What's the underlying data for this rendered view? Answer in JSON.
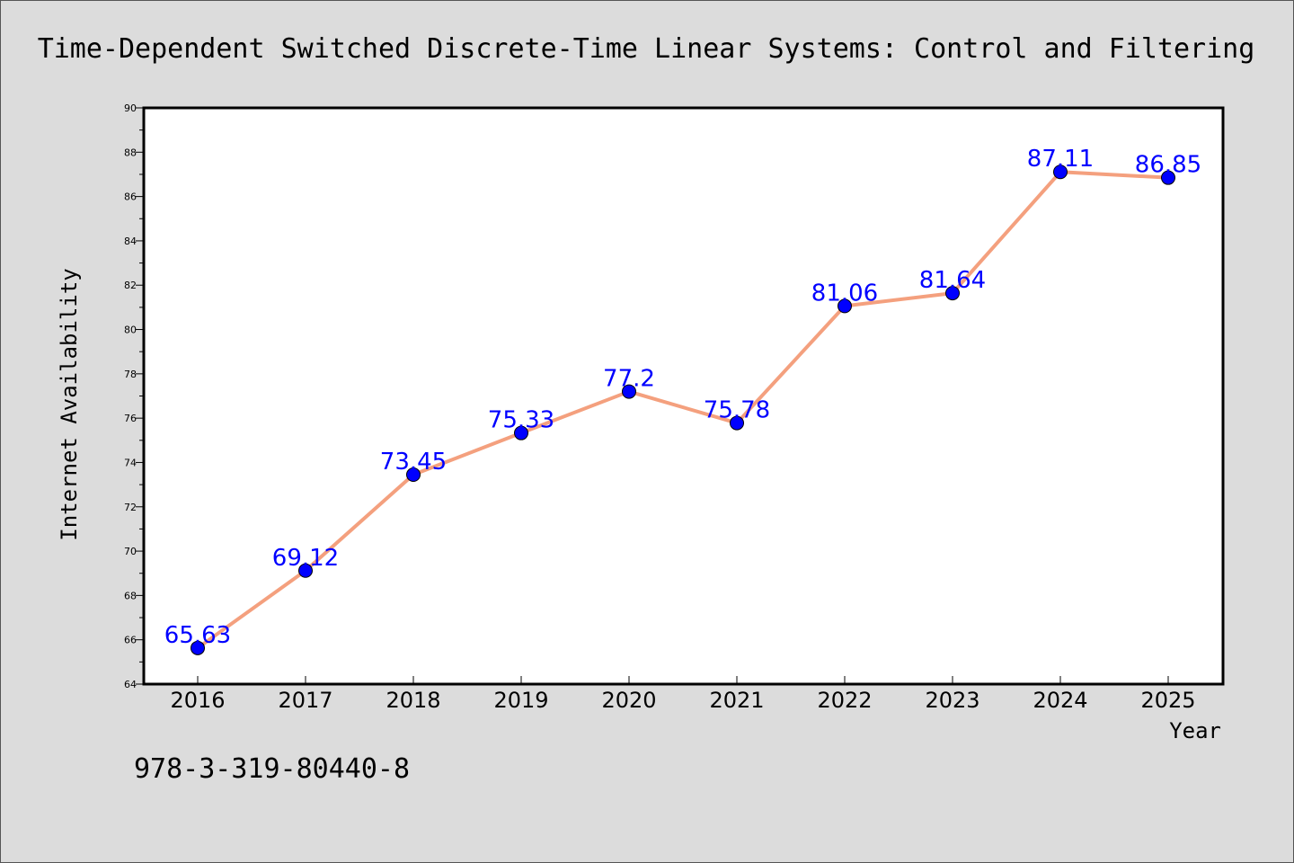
{
  "chart_data": {
    "type": "line",
    "title": "Time-Dependent Switched Discrete-Time Linear Systems: Control and Filtering",
    "xlabel": "Year",
    "ylabel": "Internet Availability",
    "categories": [
      "2016",
      "2017",
      "2018",
      "2019",
      "2020",
      "2021",
      "2022",
      "2023",
      "2024",
      "2025"
    ],
    "series": [
      {
        "values": [
          65.63,
          69.12,
          73.45,
          75.33,
          77.2,
          75.78,
          81.06,
          81.64,
          87.11,
          86.85
        ],
        "data_labels": [
          "65.63",
          "69.12",
          "73.45",
          "75.33",
          "77.2",
          "75.78",
          "81.06",
          "81.64",
          "87.11",
          "86.85"
        ]
      }
    ],
    "ylim": [
      64,
      90
    ],
    "yticks": [
      64,
      66,
      68,
      70,
      72,
      74,
      76,
      78,
      80,
      82,
      84,
      86,
      88,
      90
    ],
    "grid": false,
    "legend": "none",
    "colors": {
      "line": "#f4a07e",
      "marker": "#0000ff",
      "data_label": "#0000ff",
      "plot_background": "#ffffff",
      "figure_background": "#dcdcdc"
    }
  },
  "footer": {
    "text": "978-3-319-80440-8"
  }
}
